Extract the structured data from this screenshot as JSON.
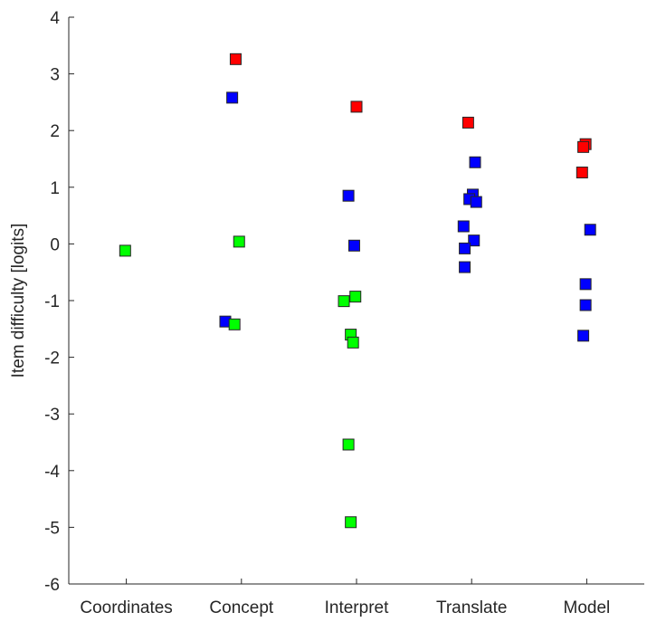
{
  "chart_data": {
    "type": "scatter",
    "title": "",
    "xlabel": "",
    "ylabel": "Item difficulty [logits]",
    "categories": [
      "Coordinates",
      "Concept",
      "Interpret",
      "Translate",
      "Model"
    ],
    "ylim": [
      -6,
      4
    ],
    "yticks": [
      -6,
      -5,
      -4,
      -3,
      -2,
      -1,
      0,
      1,
      2,
      3,
      4
    ],
    "grid": false,
    "legend": "none",
    "colors": {
      "red": "#ff0000",
      "blue": "#0000ff",
      "green": "#00ff00"
    },
    "points": [
      {
        "category": "Coordinates",
        "x": 0.99,
        "y": -0.12,
        "color": "green"
      },
      {
        "category": "Concept",
        "x": 1.95,
        "y": 3.26,
        "color": "red"
      },
      {
        "category": "Concept",
        "x": 1.92,
        "y": 2.58,
        "color": "blue"
      },
      {
        "category": "Concept",
        "x": 1.98,
        "y": 0.04,
        "color": "green"
      },
      {
        "category": "Concept",
        "x": 1.86,
        "y": -1.37,
        "color": "blue"
      },
      {
        "category": "Concept",
        "x": 1.94,
        "y": -1.42,
        "color": "green"
      },
      {
        "category": "Interpret",
        "x": 3.0,
        "y": 2.42,
        "color": "red"
      },
      {
        "category": "Interpret",
        "x": 2.93,
        "y": 0.85,
        "color": "blue"
      },
      {
        "category": "Interpret",
        "x": 2.98,
        "y": -0.03,
        "color": "blue"
      },
      {
        "category": "Interpret",
        "x": 2.89,
        "y": -1.01,
        "color": "green"
      },
      {
        "category": "Interpret",
        "x": 2.99,
        "y": -0.93,
        "color": "green"
      },
      {
        "category": "Interpret",
        "x": 2.95,
        "y": -1.6,
        "color": "green"
      },
      {
        "category": "Interpret",
        "x": 2.97,
        "y": -1.74,
        "color": "green"
      },
      {
        "category": "Interpret",
        "x": 2.93,
        "y": -3.54,
        "color": "green"
      },
      {
        "category": "Interpret",
        "x": 2.95,
        "y": -4.91,
        "color": "green"
      },
      {
        "category": "Translate",
        "x": 3.97,
        "y": 2.14,
        "color": "red"
      },
      {
        "category": "Translate",
        "x": 4.03,
        "y": 1.44,
        "color": "blue"
      },
      {
        "category": "Translate",
        "x": 4.01,
        "y": 0.87,
        "color": "blue"
      },
      {
        "category": "Translate",
        "x": 3.98,
        "y": 0.79,
        "color": "blue"
      },
      {
        "category": "Translate",
        "x": 4.04,
        "y": 0.74,
        "color": "blue"
      },
      {
        "category": "Translate",
        "x": 3.93,
        "y": 0.31,
        "color": "blue"
      },
      {
        "category": "Translate",
        "x": 4.02,
        "y": 0.06,
        "color": "blue"
      },
      {
        "category": "Translate",
        "x": 3.94,
        "y": -0.08,
        "color": "blue"
      },
      {
        "category": "Translate",
        "x": 3.94,
        "y": -0.41,
        "color": "blue"
      },
      {
        "category": "Model",
        "x": 4.99,
        "y": 1.76,
        "color": "red"
      },
      {
        "category": "Model",
        "x": 4.97,
        "y": 1.71,
        "color": "red"
      },
      {
        "category": "Model",
        "x": 4.96,
        "y": 1.26,
        "color": "red"
      },
      {
        "category": "Model",
        "x": 5.03,
        "y": 0.25,
        "color": "blue"
      },
      {
        "category": "Model",
        "x": 4.99,
        "y": -0.71,
        "color": "blue"
      },
      {
        "category": "Model",
        "x": 4.99,
        "y": -1.08,
        "color": "blue"
      },
      {
        "category": "Model",
        "x": 4.97,
        "y": -1.62,
        "color": "blue"
      }
    ]
  }
}
